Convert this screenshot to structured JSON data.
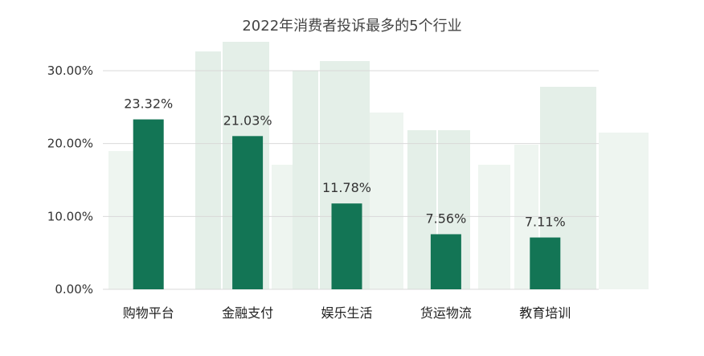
{
  "chart_data": {
    "type": "bar",
    "title": "2022年消费者投诉最多的5个行业",
    "categories": [
      "购物平台",
      "金融支付",
      "娱乐生活",
      "货运物流",
      "教育培训"
    ],
    "values": [
      23.32,
      21.03,
      11.78,
      7.56,
      7.11
    ],
    "value_labels": [
      "23.32%",
      "21.03%",
      "11.78%",
      "7.56%",
      "7.11%"
    ],
    "y_ticks": [
      "0.00%",
      "10.00%",
      "20.00%",
      "30.00%"
    ],
    "y_tick_values": [
      0,
      10,
      20,
      30
    ],
    "ylim": [
      0,
      30
    ],
    "xlabel": "",
    "ylabel": "",
    "grid": true,
    "bar_color": "#137555",
    "background_color": "#e4efe8"
  }
}
